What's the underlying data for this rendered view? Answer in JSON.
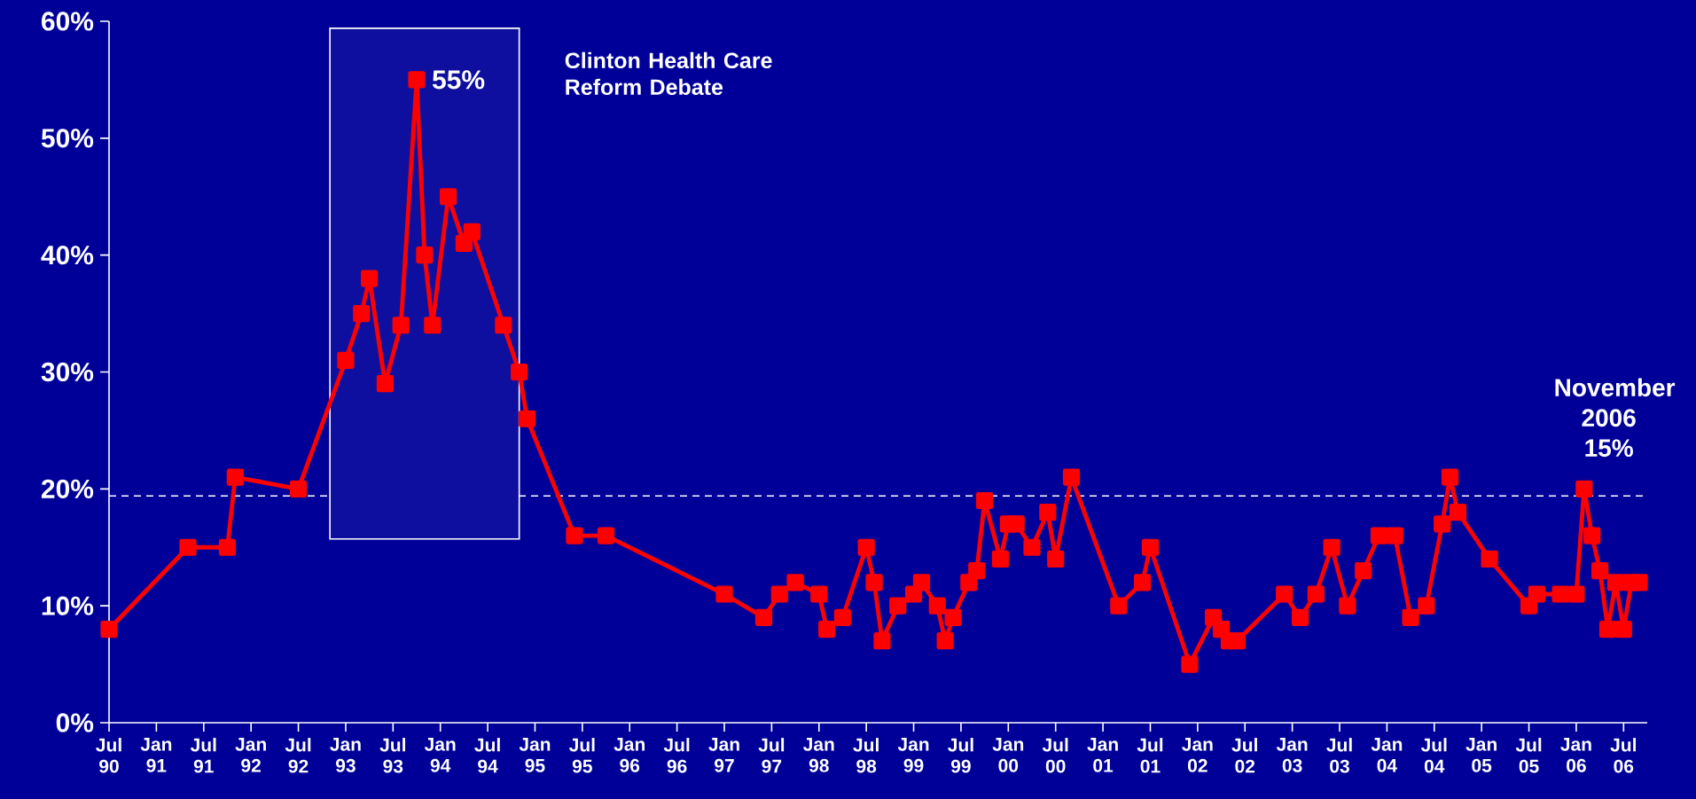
{
  "chart_data": {
    "type": "line",
    "marker": "square",
    "line_style": "solid",
    "color": "#ff0000",
    "x": [
      "1990-07",
      "1991-05",
      "1991-10",
      "1991-11",
      "1992-07",
      "1993-01",
      "1993-03",
      "1993-04",
      "1993-06",
      "1993-08",
      "1993-10",
      "1993-11",
      "1993-12",
      "1994-02",
      "1994-04",
      "1994-05",
      "1994-09",
      "1994-11",
      "1994-12",
      "1995-06",
      "1995-10",
      "1997-01",
      "1997-06",
      "1997-08",
      "1997-10",
      "1998-01",
      "1998-02",
      "1998-04",
      "1998-07",
      "1998-08",
      "1998-09",
      "1998-11",
      "1999-01",
      "1999-02",
      "1999-04",
      "1999-05",
      "1999-06",
      "1999-08",
      "1999-09",
      "1999-10",
      "1999-12",
      "2000-01",
      "2000-02",
      "2000-04",
      "2000-06",
      "2000-07",
      "2000-09",
      "2001-03",
      "2001-06",
      "2001-07",
      "2001-12",
      "2002-03",
      "2002-04",
      "2002-05",
      "2002-06",
      "2002-12",
      "2003-02",
      "2003-04",
      "2003-06",
      "2003-08",
      "2003-10",
      "2003-12",
      "2004-02",
      "2004-04",
      "2004-06",
      "2004-08",
      "2004-09",
      "2004-10",
      "2005-02",
      "2005-07",
      "2005-08",
      "2005-11",
      "2006-01",
      "2006-02",
      "2006-03",
      "2006-04",
      "2006-05",
      "2006-06",
      "2006-07",
      "2006-08",
      "2006-09"
    ],
    "values": [
      8,
      15,
      15,
      21,
      20,
      31,
      35,
      38,
      29,
      34,
      55,
      40,
      34,
      45,
      41,
      42,
      34,
      30,
      26,
      16,
      16,
      11,
      9,
      11,
      12,
      11,
      8,
      9,
      15,
      12,
      7,
      10,
      11,
      12,
      10,
      7,
      9,
      12,
      13,
      19,
      14,
      17,
      17,
      15,
      18,
      14,
      21,
      10,
      12,
      15,
      5,
      9,
      8,
      7,
      7,
      11,
      9,
      11,
      15,
      10,
      13,
      16,
      16,
      9,
      10,
      17,
      21,
      18,
      14,
      10,
      11,
      11,
      11,
      20,
      16,
      13,
      8,
      12,
      8,
      12,
      12
    ],
    "xlim": [
      "1990-07",
      "2006-10"
    ],
    "xticks": [
      {
        "value": "1990-07",
        "label": "Jul 90"
      },
      {
        "value": "1991-01",
        "label": "Jan 91"
      },
      {
        "value": "1991-07",
        "label": "Jul 91"
      },
      {
        "value": "1992-01",
        "label": "Jan 92"
      },
      {
        "value": "1992-07",
        "label": "Jul 92"
      },
      {
        "value": "1993-01",
        "label": "Jan 93"
      },
      {
        "value": "1993-07",
        "label": "Jul 93"
      },
      {
        "value": "1994-01",
        "label": "Jan 94"
      },
      {
        "value": "1994-07",
        "label": "Jul 94"
      },
      {
        "value": "1995-01",
        "label": "Jan 95"
      },
      {
        "value": "1995-07",
        "label": "Jul 95"
      },
      {
        "value": "1996-01",
        "label": "Jan 96"
      },
      {
        "value": "1996-07",
        "label": "Jul 96"
      },
      {
        "value": "1997-01",
        "label": "Jan 97"
      },
      {
        "value": "1997-07",
        "label": "Jul 97"
      },
      {
        "value": "1998-01",
        "label": "Jan 98"
      },
      {
        "value": "1998-07",
        "label": "Jul 98"
      },
      {
        "value": "1999-01",
        "label": "Jan 99"
      },
      {
        "value": "1999-07",
        "label": "Jul 99"
      },
      {
        "value": "2000-01",
        "label": "Jan 00"
      },
      {
        "value": "2000-07",
        "label": "Jul 00"
      },
      {
        "value": "2001-01",
        "label": "Jan 01"
      },
      {
        "value": "2001-07",
        "label": "Jul 01"
      },
      {
        "value": "2002-01",
        "label": "Jan 02"
      },
      {
        "value": "2002-07",
        "label": "Jul 02"
      },
      {
        "value": "2003-01",
        "label": "Jan 03"
      },
      {
        "value": "2003-07",
        "label": "Jul 03"
      },
      {
        "value": "2004-01",
        "label": "Jan 04"
      },
      {
        "value": "2004-07",
        "label": "Jul 04"
      },
      {
        "value": "2005-01",
        "label": "Jan 05"
      },
      {
        "value": "2005-07",
        "label": "Jul 05"
      },
      {
        "value": "2006-01",
        "label": "Jan 06"
      },
      {
        "value": "2006-07",
        "label": "Jul 06"
      }
    ],
    "ylim": [
      0,
      60
    ],
    "yticks": [
      {
        "value": 0,
        "label": "0%"
      },
      {
        "value": 10,
        "label": "10%"
      },
      {
        "value": 20,
        "label": "20%"
      },
      {
        "value": 30,
        "label": "30%"
      },
      {
        "value": 40,
        "label": "40%"
      },
      {
        "value": 50,
        "label": "50%"
      },
      {
        "value": 60,
        "label": "60%"
      }
    ],
    "ref_lines": [
      {
        "axis": "y",
        "value": 19.4,
        "color": "#ffffff",
        "line_style": "dashed"
      }
    ],
    "bands": [
      {
        "axis": "x",
        "from": "1992-11",
        "to": "1994-11",
        "label": "Clinton Health Care Reform Debate",
        "color": "#ffffff"
      }
    ],
    "annotations": [
      {
        "text": "55%",
        "x": "1993-10",
        "y": 55
      },
      "November 2006 15%"
    ]
  }
}
